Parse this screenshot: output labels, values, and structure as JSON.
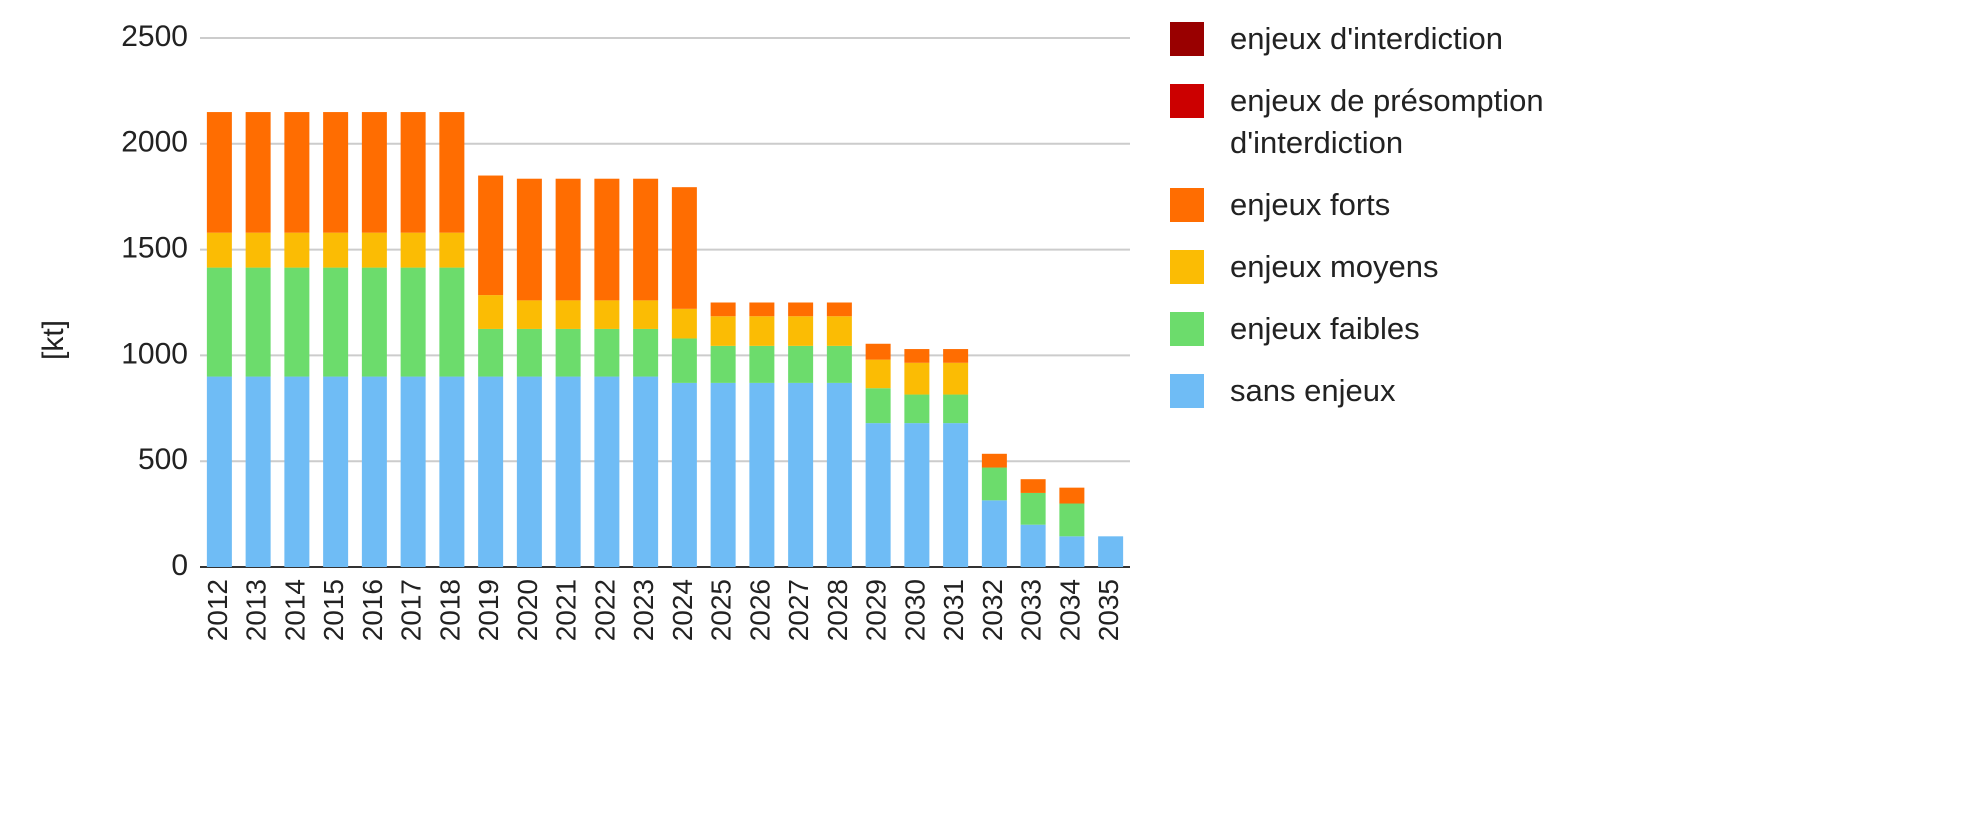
{
  "chart_data": {
    "type": "stacked_bar",
    "y_label": "[kt]",
    "categories": [
      "2012",
      "2013",
      "2014",
      "2015",
      "2016",
      "2017",
      "2018",
      "2019",
      "2020",
      "2021",
      "2022",
      "2023",
      "2024",
      "2025",
      "2026",
      "2027",
      "2028",
      "2029",
      "2030",
      "2031",
      "2032",
      "2033",
      "2034",
      "2035"
    ],
    "series": [
      {
        "name": "sans enjeux",
        "color": "#6fbcf5",
        "values": [
          900,
          900,
          900,
          900,
          900,
          900,
          900,
          900,
          900,
          900,
          900,
          900,
          870,
          870,
          870,
          870,
          870,
          680,
          680,
          680,
          315,
          200,
          145,
          145
        ]
      },
      {
        "name": "enjeux faibles",
        "color": "#6cdc6c",
        "values": [
          515,
          515,
          515,
          515,
          515,
          515,
          515,
          225,
          225,
          225,
          225,
          225,
          210,
          175,
          175,
          175,
          175,
          165,
          135,
          135,
          155,
          150,
          155,
          0
        ]
      },
      {
        "name": "enjeux moyens",
        "color": "#fbbc04",
        "values": [
          165,
          165,
          165,
          165,
          165,
          165,
          165,
          160,
          135,
          135,
          135,
          135,
          140,
          140,
          140,
          140,
          140,
          135,
          150,
          150,
          0,
          0,
          0,
          0
        ]
      },
      {
        "name": "enjeux forts",
        "color": "#ff6d01",
        "values": [
          570,
          570,
          570,
          570,
          570,
          570,
          570,
          565,
          575,
          575,
          575,
          575,
          575,
          65,
          65,
          65,
          65,
          75,
          65,
          65,
          65,
          65,
          75,
          0
        ]
      },
      {
        "name": "enjeux de présomption d'interdiction",
        "color": "#cc0000",
        "values": [
          0,
          0,
          0,
          0,
          0,
          0,
          0,
          0,
          0,
          0,
          0,
          0,
          0,
          0,
          0,
          0,
          0,
          0,
          0,
          0,
          0,
          0,
          0,
          0
        ]
      },
      {
        "name": "enjeux d'interdiction",
        "color": "#990000",
        "values": [
          0,
          0,
          0,
          0,
          0,
          0,
          0,
          0,
          0,
          0,
          0,
          0,
          0,
          0,
          0,
          0,
          0,
          0,
          0,
          0,
          0,
          0,
          0,
          0
        ]
      }
    ],
    "ylim": [
      0,
      2500
    ],
    "yticks": [
      0,
      500,
      1000,
      1500,
      2000,
      2500
    ],
    "grid": true
  }
}
